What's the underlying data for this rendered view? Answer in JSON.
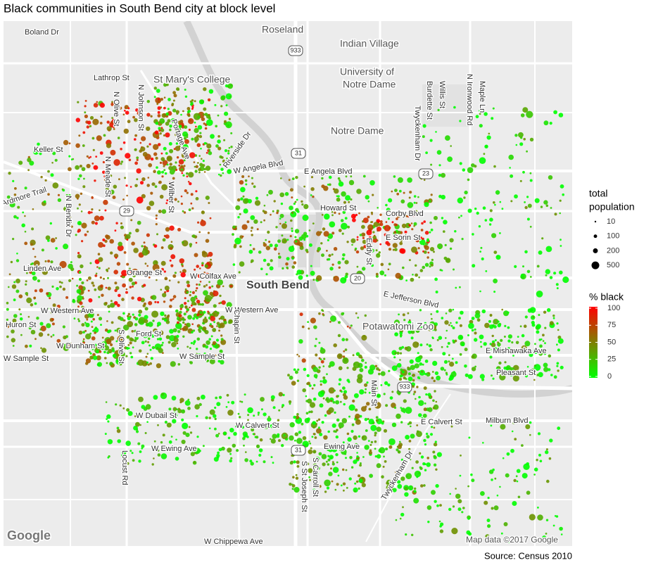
{
  "title": "Black communities in South Bend city at block level",
  "map": {
    "labels": [
      "Boland Dr",
      "Roseland",
      "Indian Village",
      "Lathrop St",
      "St Mary's College",
      "University of",
      "Notre Dame",
      "Notre Dame",
      "Keller St",
      "W Angela Blvd",
      "E Angela Blvd",
      "Ardmore Trail",
      "Howard St",
      "Corby Blvd",
      "E Sorin St",
      "Linden Ave",
      "Orange St",
      "W Colfax Ave",
      "South Bend",
      "E Jefferson Blvd",
      "W Western Ave",
      "W Western Ave",
      "Huron St",
      "Potawatomi Zoo",
      "Ford St",
      "W Dunham St",
      "E Mishawaka Ave",
      "W Sample St",
      "W Sample St",
      "Pleasant St",
      "E Calvert St",
      "Milburn Blvd",
      "W Dubail St",
      "W Calvert St",
      "W Ewing Ave",
      "Ewing Ave",
      "Chapin St",
      "Locust Rd",
      "S Olive St",
      "W Chippewa Ave",
      "Portage Ave",
      "Riverside Dr",
      "N Bendix Dr",
      "Wilber St",
      "N Meade St",
      "N Olive St",
      "Twyckenham Dr",
      "N Ironwood Rd",
      "Maple Ln",
      "Burdette St",
      "Willis St",
      "Eddy St",
      "Main St",
      "S Carroll St",
      "S St Joseph St",
      "Twyckenham Dr",
      "N Johnson St",
      "933",
      "31",
      "20",
      "23",
      "29",
      "933",
      "31"
    ],
    "logo": "Google",
    "attribution": "Map data ©2017 Google"
  },
  "legend": {
    "size": {
      "title_lines": [
        "total",
        "population"
      ],
      "values": [
        10,
        100,
        200,
        500
      ]
    },
    "color": {
      "title": "% black",
      "ticks": [
        100,
        75,
        50,
        25,
        0
      ],
      "range": [
        0,
        100
      ],
      "low_color": "#00ff00",
      "high_color": "#ff0000"
    }
  },
  "source": "Source: Census 2010"
}
